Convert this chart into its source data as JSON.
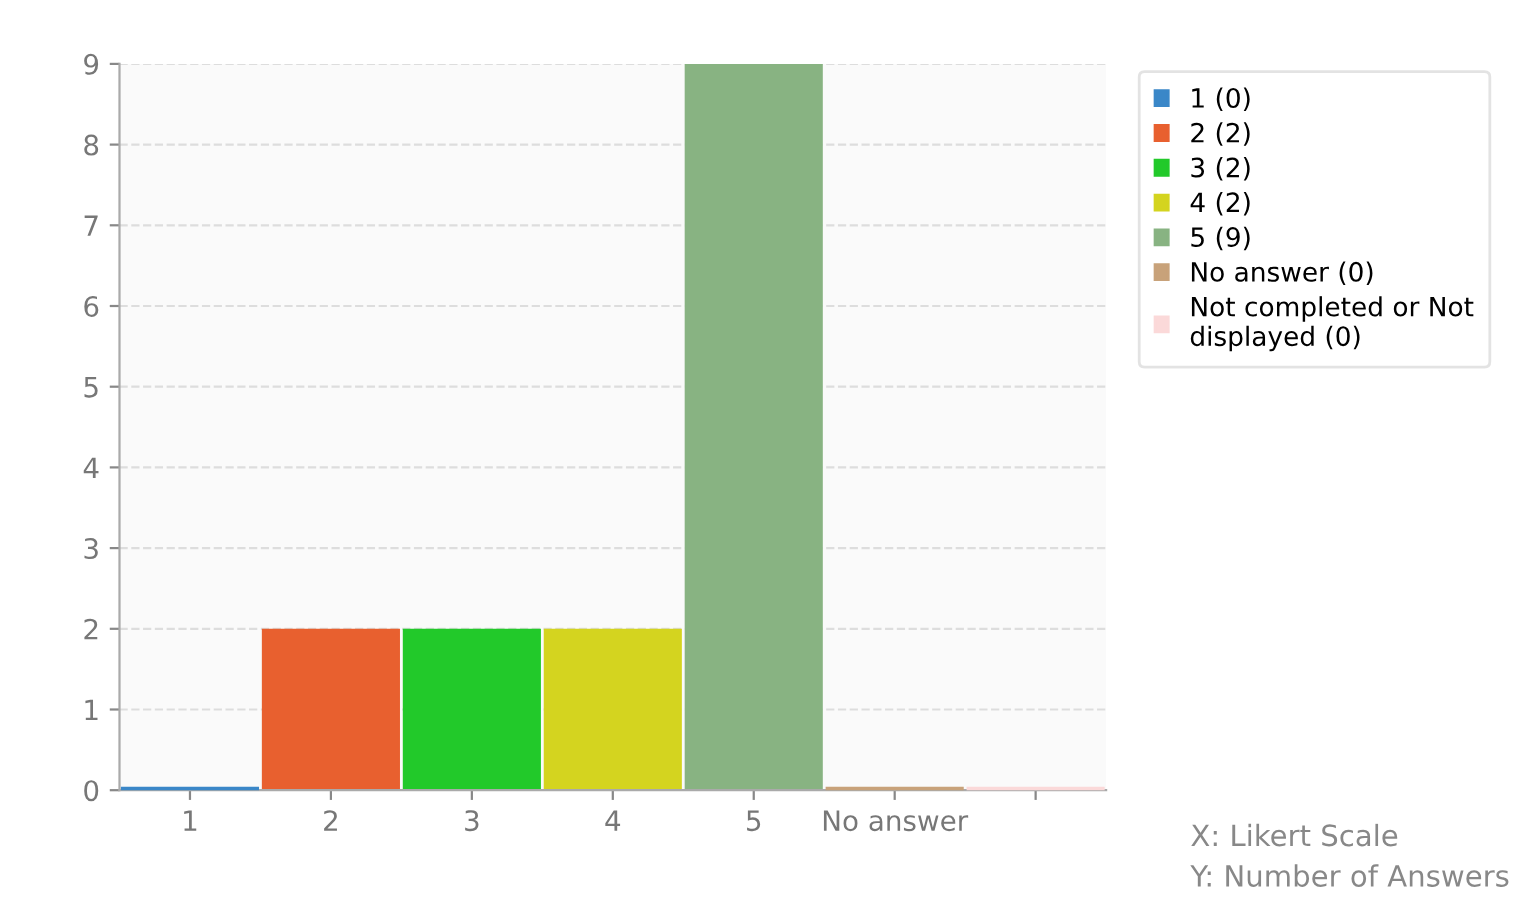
{
  "chart_data": {
    "type": "bar",
    "categories": [
      "1",
      "2",
      "3",
      "4",
      "5",
      "No answer",
      null
    ],
    "series": [
      {
        "name": "1 (0)",
        "color": "#3a87c8",
        "values": [
          0,
          null,
          null,
          null,
          null,
          null,
          null
        ]
      },
      {
        "name": "2 (2)",
        "color": "#e8602f",
        "values": [
          null,
          2,
          null,
          null,
          null,
          null,
          null
        ]
      },
      {
        "name": "3 (2)",
        "color": "#22c92a",
        "values": [
          null,
          null,
          2,
          null,
          null,
          null,
          null
        ]
      },
      {
        "name": "4 (2)",
        "color": "#d4d41f",
        "values": [
          null,
          null,
          null,
          2,
          null,
          null,
          null
        ]
      },
      {
        "name": "5 (9)",
        "color": "#88b382",
        "values": [
          null,
          null,
          null,
          null,
          9,
          null,
          null
        ]
      },
      {
        "name": "No answer (0)",
        "color": "#c8a27a",
        "values": [
          null,
          null,
          null,
          null,
          null,
          0,
          null
        ]
      },
      {
        "name": "Not completed or Not displayed (0)",
        "color": "#fbd9d9",
        "values": [
          null,
          null,
          null,
          null,
          null,
          null,
          0
        ]
      }
    ],
    "ylim": [
      0,
      9
    ],
    "yticks": [
      0,
      1,
      2,
      3,
      4,
      5,
      6,
      7,
      8,
      9
    ],
    "grid": "y",
    "legend": "top right",
    "annotations": [
      "X: Likert Scale",
      "Y: Number of Answers"
    ]
  }
}
